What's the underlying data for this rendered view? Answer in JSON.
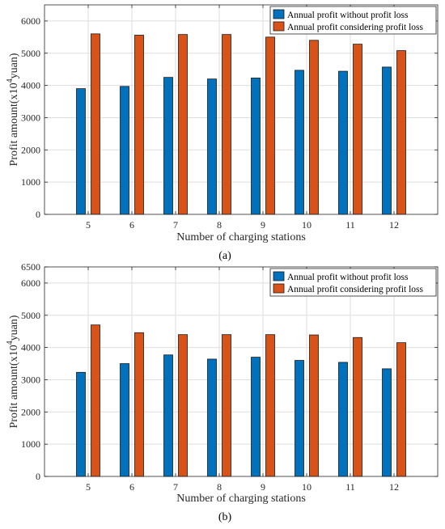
{
  "chart_data": [
    {
      "type": "bar",
      "caption": "(a)",
      "categories": [
        "5",
        "6",
        "7",
        "8",
        "9",
        "10",
        "11",
        "12"
      ],
      "series": [
        {
          "name": "Annual profit without profit loss",
          "color": "#0072BD",
          "values": [
            3900,
            3970,
            4250,
            4200,
            4230,
            4470,
            4440,
            4570
          ]
        },
        {
          "name": "Annual profit considering profit loss",
          "color": "#D95319",
          "values": [
            5600,
            5560,
            5580,
            5580,
            5500,
            5400,
            5280,
            5080
          ]
        }
      ],
      "xlabel": "Number of charging stations",
      "ylabel_prefix": "Profit amount(x10",
      "ylabel_exp": "4",
      "ylabel_suffix": "yuan)",
      "ylim": [
        0,
        6500
      ],
      "yticks": [
        0,
        1000,
        2000,
        3000,
        4000,
        5000,
        6000
      ],
      "grid": true,
      "legend": "top-right"
    },
    {
      "type": "bar",
      "caption": "(b)",
      "categories": [
        "5",
        "6",
        "7",
        "8",
        "9",
        "10",
        "11",
        "12"
      ],
      "series": [
        {
          "name": "Annual profit without profit loss",
          "color": "#0072BD",
          "values": [
            3230,
            3500,
            3770,
            3640,
            3700,
            3600,
            3540,
            3340
          ]
        },
        {
          "name": "Annual profit considering profit loss",
          "color": "#D95319",
          "values": [
            4700,
            4460,
            4400,
            4400,
            4400,
            4390,
            4310,
            4150
          ]
        }
      ],
      "xlabel": "Number of charging stations",
      "ylabel_prefix": "Profit amount(x10",
      "ylabel_exp": "4",
      "ylabel_suffix": "yuan)",
      "ylim": [
        0,
        6500
      ],
      "yticks": [
        0,
        1000,
        2000,
        3000,
        4000,
        5000,
        6000,
        6500
      ],
      "grid": true,
      "legend": "top-right"
    }
  ]
}
